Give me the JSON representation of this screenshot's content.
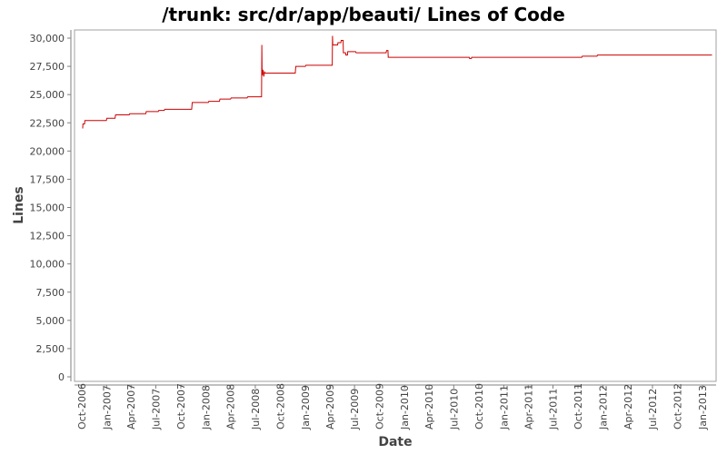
{
  "chart_data": {
    "type": "line",
    "title": "/trunk: src/dr/app/beauti/ Lines of Code",
    "xlabel": "Date",
    "ylabel": "Lines",
    "ylim": [
      0,
      30000
    ],
    "xlim": [
      "2006-09-05",
      "2013-02-20"
    ],
    "grid": false,
    "legend": "none",
    "colors": {
      "series": "#cc0000",
      "axis": "#808080",
      "plot_border": "#a0a0a0",
      "tick_text": "#444444"
    },
    "y_ticks": [
      {
        "value": 0,
        "label": "0"
      },
      {
        "value": 2500,
        "label": "2,500"
      },
      {
        "value": 5000,
        "label": "5,000"
      },
      {
        "value": 7500,
        "label": "7,500"
      },
      {
        "value": 10000,
        "label": "10,000"
      },
      {
        "value": 12500,
        "label": "12,500"
      },
      {
        "value": 15000,
        "label": "15,000"
      },
      {
        "value": 17500,
        "label": "17,500"
      },
      {
        "value": 20000,
        "label": "20,000"
      },
      {
        "value": 22500,
        "label": "22,500"
      },
      {
        "value": 25000,
        "label": "25,000"
      },
      {
        "value": 27500,
        "label": "27,500"
      },
      {
        "value": 30000,
        "label": "30,000"
      }
    ],
    "x_ticks": [
      {
        "date": "2006-10-01",
        "label": "Oct-2006"
      },
      {
        "date": "2007-01-01",
        "label": "Jan-2007"
      },
      {
        "date": "2007-04-01",
        "label": "Apr-2007"
      },
      {
        "date": "2007-07-01",
        "label": "Jul-2007"
      },
      {
        "date": "2007-10-01",
        "label": "Oct-2007"
      },
      {
        "date": "2008-01-01",
        "label": "Jan-2008"
      },
      {
        "date": "2008-04-01",
        "label": "Apr-2008"
      },
      {
        "date": "2008-07-01",
        "label": "Jul-2008"
      },
      {
        "date": "2008-10-01",
        "label": "Oct-2008"
      },
      {
        "date": "2009-01-01",
        "label": "Jan-2009"
      },
      {
        "date": "2009-04-01",
        "label": "Apr-2009"
      },
      {
        "date": "2009-07-01",
        "label": "Jul-2009"
      },
      {
        "date": "2009-10-01",
        "label": "Oct-2009"
      },
      {
        "date": "2010-01-01",
        "label": "Jan-2010"
      },
      {
        "date": "2010-04-01",
        "label": "Apr-2010"
      },
      {
        "date": "2010-07-01",
        "label": "Jul-2010"
      },
      {
        "date": "2010-10-01",
        "label": "Oct-2010"
      },
      {
        "date": "2011-01-01",
        "label": "Jan-2011"
      },
      {
        "date": "2011-04-01",
        "label": "Apr-2011"
      },
      {
        "date": "2011-07-01",
        "label": "Jul-2011"
      },
      {
        "date": "2011-10-01",
        "label": "Oct-2011"
      },
      {
        "date": "2012-01-01",
        "label": "Jan-2012"
      },
      {
        "date": "2012-04-01",
        "label": "Apr-2012"
      },
      {
        "date": "2012-07-01",
        "label": "Jul-2012"
      },
      {
        "date": "2012-10-01",
        "label": "Oct-2012"
      },
      {
        "date": "2013-01-01",
        "label": "Jan-2013"
      }
    ],
    "series": [
      {
        "points": [
          [
            "2006-10-05",
            22000
          ],
          [
            "2006-10-06",
            22400
          ],
          [
            "2006-10-12",
            22400
          ],
          [
            "2006-10-13",
            22700
          ],
          [
            "2006-12-31",
            22700
          ],
          [
            "2007-01-02",
            22900
          ],
          [
            "2007-02-01",
            22900
          ],
          [
            "2007-02-03",
            23200
          ],
          [
            "2007-03-25",
            23200
          ],
          [
            "2007-03-27",
            23300
          ],
          [
            "2007-05-25",
            23300
          ],
          [
            "2007-05-27",
            23500
          ],
          [
            "2007-07-10",
            23500
          ],
          [
            "2007-07-12",
            23600
          ],
          [
            "2007-08-01",
            23600
          ],
          [
            "2007-08-03",
            23700
          ],
          [
            "2007-11-10",
            23700
          ],
          [
            "2007-11-12",
            24300
          ],
          [
            "2008-01-10",
            24300
          ],
          [
            "2008-01-12",
            24400
          ],
          [
            "2008-02-20",
            24400
          ],
          [
            "2008-02-22",
            24600
          ],
          [
            "2008-04-01",
            24600
          ],
          [
            "2008-04-03",
            24700
          ],
          [
            "2008-06-01",
            24700
          ],
          [
            "2008-06-03",
            24800
          ],
          [
            "2008-07-24",
            24800
          ],
          [
            "2008-07-25",
            29400
          ],
          [
            "2008-07-26",
            26700
          ],
          [
            "2008-07-29",
            27200
          ],
          [
            "2008-08-01",
            26600
          ],
          [
            "2008-08-04",
            27000
          ],
          [
            "2008-08-06",
            26900
          ],
          [
            "2008-11-25",
            26900
          ],
          [
            "2008-11-27",
            27500
          ],
          [
            "2009-01-01",
            27500
          ],
          [
            "2009-01-03",
            27600
          ],
          [
            "2009-04-10",
            27600
          ],
          [
            "2009-04-11",
            30200
          ],
          [
            "2009-04-12",
            29400
          ],
          [
            "2009-04-30",
            29400
          ],
          [
            "2009-05-01",
            29600
          ],
          [
            "2009-05-12",
            29600
          ],
          [
            "2009-05-13",
            29800
          ],
          [
            "2009-05-20",
            29800
          ],
          [
            "2009-05-21",
            28700
          ],
          [
            "2009-05-29",
            28700
          ],
          [
            "2009-05-30",
            28500
          ],
          [
            "2009-06-05",
            28500
          ],
          [
            "2009-06-06",
            28800
          ],
          [
            "2009-07-05",
            28800
          ],
          [
            "2009-07-07",
            28700
          ],
          [
            "2009-10-25",
            28700
          ],
          [
            "2009-10-27",
            28900
          ],
          [
            "2009-11-01",
            28900
          ],
          [
            "2009-11-02",
            28300
          ],
          [
            "2010-08-27",
            28300
          ],
          [
            "2010-08-28",
            28200
          ],
          [
            "2010-09-04",
            28200
          ],
          [
            "2010-09-05",
            28300
          ],
          [
            "2011-10-15",
            28300
          ],
          [
            "2011-10-17",
            28400
          ],
          [
            "2011-12-10",
            28400
          ],
          [
            "2011-12-12",
            28500
          ],
          [
            "2013-02-05",
            28500
          ]
        ]
      }
    ]
  }
}
